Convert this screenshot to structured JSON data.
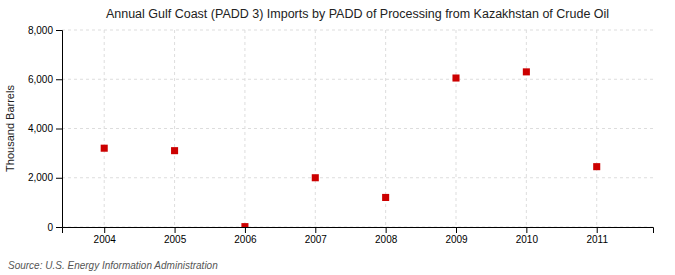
{
  "chart_data": {
    "type": "scatter",
    "title": "Annual Gulf Coast (PADD 3) Imports by PADD of Processing from Kazakhstan of Crude Oil",
    "ylabel": "Thousand Barrels",
    "source": "Source: U.S. Energy Information Administration",
    "x": [
      2004,
      2005,
      2006,
      2007,
      2008,
      2009,
      2010,
      2011
    ],
    "values": [
      3200,
      3100,
      15,
      2000,
      1200,
      6050,
      6300,
      2450
    ],
    "color": "#cc0000",
    "marker": "square",
    "xlim": [
      2003.4,
      2011.8
    ],
    "xticks": [
      2004,
      2005,
      2006,
      2007,
      2008,
      2009,
      2010,
      2011
    ],
    "ylim": [
      0,
      8000
    ],
    "yticks": [
      0,
      {
        "value": 2000,
        "label": "2,000"
      },
      {
        "value": 4000,
        "label": "4,000"
      },
      {
        "value": 6000,
        "label": "6,000"
      },
      {
        "value": 8000,
        "label": "8,000"
      }
    ],
    "grid": true
  }
}
